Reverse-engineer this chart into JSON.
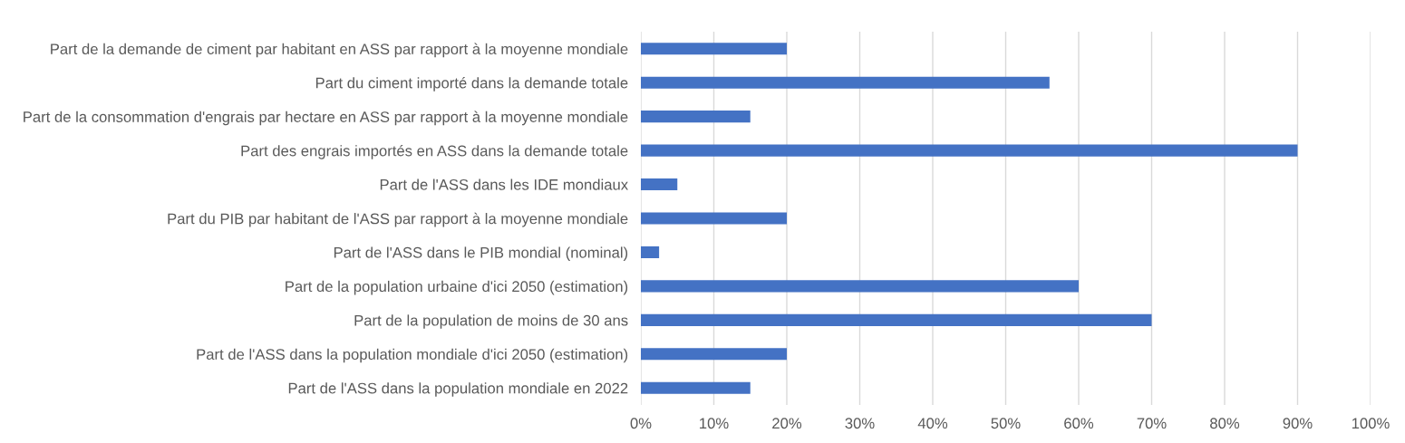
{
  "chart_data": {
    "type": "bar",
    "orientation": "horizontal",
    "categories": [
      "Part de la demande de ciment par habitant en ASS par rapport à la moyenne mondiale",
      "Part du ciment importé dans la demande totale",
      "Part de la consommation d'engrais par hectare en ASS par rapport à la moyenne mondiale",
      "Part des engrais importés en ASS dans la demande totale",
      "Part de l'ASS dans les IDE mondiaux",
      "Part du PIB par habitant de l'ASS par rapport à la moyenne mondiale",
      "Part de l'ASS dans le PIB mondial (nominal)",
      "Part de la population urbaine d'ici 2050 (estimation)",
      "Part de la population de moins de 30 ans",
      "Part de l'ASS dans la population mondiale d'ici 2050 (estimation)",
      "Part de l'ASS dans la population mondiale en 2022"
    ],
    "values": [
      20,
      56,
      15,
      90,
      5,
      20,
      2.5,
      60,
      70,
      20,
      15
    ],
    "color": "#4472c4",
    "xlim": [
      0,
      100
    ],
    "xticks": [
      {
        "value": 0,
        "label": "0%"
      },
      {
        "value": 10,
        "label": "10%"
      },
      {
        "value": 20,
        "label": "20%"
      },
      {
        "value": 30,
        "label": "30%"
      },
      {
        "value": 40,
        "label": "40%"
      },
      {
        "value": 50,
        "label": "50%"
      },
      {
        "value": 60,
        "label": "60%"
      },
      {
        "value": 70,
        "label": "70%"
      },
      {
        "value": 80,
        "label": "80%"
      },
      {
        "value": 90,
        "label": "90%"
      },
      {
        "value": 100,
        "label": "100%"
      }
    ],
    "grid": "x"
  }
}
